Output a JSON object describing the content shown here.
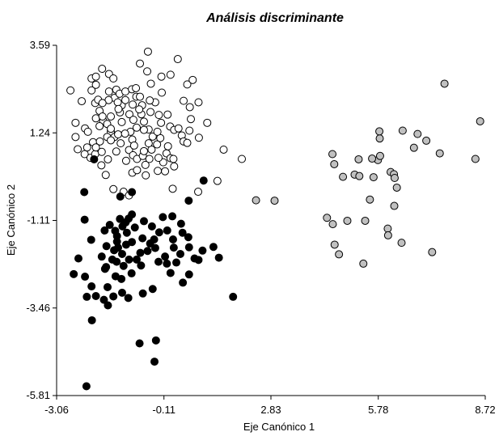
{
  "chart_data": {
    "type": "scatter",
    "title": "Análisis discriminante",
    "xlabel": "Eje Canónico 1",
    "ylabel": "Eje Canónico 2",
    "xlim": [
      -3.06,
      8.72
    ],
    "ylim": [
      -5.81,
      3.59
    ],
    "x_ticks": [
      "-3.06",
      "-0.11",
      "2.83",
      "5.78",
      "8.72"
    ],
    "y_ticks": [
      "3.59",
      "1.24",
      "-1.11",
      "-3.46",
      "-5.81"
    ],
    "grid": false,
    "legend": "none",
    "series": [
      {
        "fill": "#ffffff",
        "stroke": "#000000",
        "points": [
          [
            -2.1,
            2.38
          ],
          [
            -2.0,
            2.04
          ],
          [
            -2.68,
            2.38
          ],
          [
            -2.37,
            2.09
          ],
          [
            -2.54,
            1.51
          ],
          [
            -2.28,
            1.36
          ],
          [
            -2.54,
            1.13
          ],
          [
            -2.48,
            0.8
          ],
          [
            -2.29,
            0.67
          ],
          [
            -2.13,
            0.57
          ],
          [
            -2.0,
            0.67
          ],
          [
            -2.2,
            1.27
          ],
          [
            -2.06,
            0.99
          ],
          [
            -2.22,
            0.85
          ],
          [
            -1.92,
            2.13
          ],
          [
            -1.88,
            1.83
          ],
          [
            -1.98,
            1.63
          ],
          [
            -1.78,
            1.56
          ],
          [
            -1.98,
            2.53
          ],
          [
            -2.1,
            2.7
          ],
          [
            -1.98,
            2.75
          ],
          [
            -1.81,
            2.96
          ],
          [
            -1.62,
            2.82
          ],
          [
            -1.5,
            2.7
          ],
          [
            -1.42,
            2.4
          ],
          [
            -1.47,
            2.18
          ],
          [
            -1.63,
            2.12
          ],
          [
            -1.8,
            2.04
          ],
          [
            -1.8,
            1.68
          ],
          [
            -1.57,
            1.68
          ],
          [
            -1.67,
            1.48
          ],
          [
            -1.88,
            1.42
          ],
          [
            -1.57,
            1.27
          ],
          [
            -1.47,
            1.13
          ],
          [
            -1.67,
            1.13
          ],
          [
            -1.87,
            1.01
          ],
          [
            -1.98,
            0.85
          ],
          [
            -1.82,
            0.73
          ],
          [
            -1.57,
            1.04
          ],
          [
            -1.57,
            1.35
          ],
          [
            -1.37,
            1.2
          ],
          [
            -1.3,
            0.96
          ],
          [
            -1.42,
            0.74
          ],
          [
            -1.07,
            0.78
          ],
          [
            -0.96,
            0.64
          ],
          [
            -1.15,
            0.49
          ],
          [
            -1.65,
            0.53
          ],
          [
            -1.83,
            0.37
          ],
          [
            -1.71,
            0.11
          ],
          [
            -1.5,
            -0.27
          ],
          [
            -1.22,
            -0.34
          ],
          [
            -1.07,
            -0.44
          ],
          [
            -0.98,
            0.17
          ],
          [
            -0.85,
            0.54
          ],
          [
            -0.69,
            0.62
          ],
          [
            -0.51,
            0.54
          ],
          [
            -0.45,
            0.79
          ],
          [
            -0.3,
            0.93
          ],
          [
            -0.42,
            1.14
          ],
          [
            -0.53,
            1.33
          ],
          [
            -0.66,
            1.54
          ],
          [
            -0.86,
            1.38
          ],
          [
            -1.03,
            1.27
          ],
          [
            -0.98,
            1.06
          ],
          [
            -1.18,
            1.22
          ],
          [
            -1.27,
            1.53
          ],
          [
            -1.06,
            1.74
          ],
          [
            -1.32,
            1.79
          ],
          [
            -1.27,
            1.98
          ],
          [
            -1.17,
            2.12
          ],
          [
            -1.38,
            2.06
          ],
          [
            -1.62,
            2.35
          ],
          [
            -1.33,
            2.29
          ],
          [
            -1.17,
            2.35
          ],
          [
            -0.99,
            2.41
          ],
          [
            -0.88,
            2.44
          ],
          [
            -0.87,
            2.21
          ],
          [
            -0.97,
            2.0
          ],
          [
            -0.77,
            2.21
          ],
          [
            -0.71,
            1.98
          ],
          [
            -0.73,
            1.74
          ],
          [
            -0.79,
            1.87
          ],
          [
            -0.95,
            1.59
          ],
          [
            -0.66,
            1.32
          ],
          [
            -0.53,
            0.96
          ],
          [
            -0.66,
            0.75
          ],
          [
            -0.62,
            0.38
          ],
          [
            -0.85,
            0.24
          ],
          [
            -0.61,
            0.1
          ],
          [
            -0.28,
            0.22
          ],
          [
            -0.13,
            0.45
          ],
          [
            -0.04,
            0.69
          ],
          [
            0.07,
            0.56
          ],
          [
            0.17,
            0.34
          ],
          [
            0.15,
            0.54
          ],
          [
            0.0,
            0.88
          ],
          [
            -0.21,
            1.1
          ],
          [
            -0.29,
            1.27
          ],
          [
            -0.19,
            1.51
          ],
          [
            -0.25,
            1.72
          ],
          [
            -0.01,
            1.73
          ],
          [
            0.06,
            1.41
          ],
          [
            0.17,
            1.32
          ],
          [
            0.29,
            1.36
          ],
          [
            0.38,
            1.17
          ],
          [
            0.43,
            1.01
          ],
          [
            0.53,
            0.97
          ],
          [
            0.59,
            1.3
          ],
          [
            0.63,
            1.61
          ],
          [
            0.6,
            1.93
          ],
          [
            0.43,
            2.1
          ],
          [
            0.53,
            2.54
          ],
          [
            0.68,
            2.66
          ],
          [
            0.27,
            3.22
          ],
          [
            0.07,
            2.8
          ],
          [
            -0.18,
            2.75
          ],
          [
            -0.47,
            2.56
          ],
          [
            -0.57,
            2.89
          ],
          [
            -0.77,
            3.1
          ],
          [
            -0.55,
            3.42
          ],
          [
            -0.17,
            2.32
          ],
          [
            -0.35,
            2.06
          ],
          [
            -0.5,
            2.11
          ],
          [
            -0.48,
            1.8
          ],
          [
            -0.26,
            0.57
          ],
          [
            -0.08,
            0.21
          ],
          [
            0.13,
            -0.26
          ],
          [
            0.85,
            1.11
          ],
          [
            0.84,
            2.06
          ],
          [
            1.08,
            1.51
          ],
          [
            1.53,
            0.79
          ],
          [
            2.03,
            0.54
          ],
          [
            1.36,
            -0.05
          ],
          [
            0.83,
            -0.34
          ],
          [
            -1.36,
            1.88
          ],
          [
            -0.93,
            0.9
          ]
        ]
      },
      {
        "fill": "#000000",
        "stroke": "#000000",
        "points": [
          [
            -2.03,
            0.53
          ],
          [
            -2.3,
            -0.35
          ],
          [
            -1.31,
            -0.47
          ],
          [
            -0.99,
            -0.35
          ],
          [
            0.57,
            -0.58
          ],
          [
            0.98,
            -0.04
          ],
          [
            -2.29,
            -1.09
          ],
          [
            -2.11,
            -1.63
          ],
          [
            -2.46,
            -2.13
          ],
          [
            -2.59,
            -2.55
          ],
          [
            -2.28,
            -2.62
          ],
          [
            -2.1,
            -2.88
          ],
          [
            -1.7,
            -2.36
          ],
          [
            -1.53,
            -2.16
          ],
          [
            -1.82,
            -2.08
          ],
          [
            -1.74,
            -1.38
          ],
          [
            -1.6,
            -1.23
          ],
          [
            -1.45,
            -1.39
          ],
          [
            -1.4,
            -1.53
          ],
          [
            -1.25,
            -1.27
          ],
          [
            -1.13,
            -1.44
          ],
          [
            -1.15,
            -1.76
          ],
          [
            -0.99,
            -1.69
          ],
          [
            -1.26,
            -2.01
          ],
          [
            -1.48,
            -1.91
          ],
          [
            -1.69,
            -1.8
          ],
          [
            -1.73,
            -2.41
          ],
          [
            -1.41,
            -2.22
          ],
          [
            -1.22,
            -2.33
          ],
          [
            -1.07,
            -2.16
          ],
          [
            -1.0,
            -2.53
          ],
          [
            -0.86,
            -2.16
          ],
          [
            -0.74,
            -2.32
          ],
          [
            -0.76,
            -1.98
          ],
          [
            -0.56,
            -1.93
          ],
          [
            -0.49,
            -1.73
          ],
          [
            -0.7,
            -1.59
          ],
          [
            -0.91,
            -1.3
          ],
          [
            -1.08,
            -1.06
          ],
          [
            -1.32,
            -1.07
          ],
          [
            -1.16,
            -1.16
          ],
          [
            -0.99,
            -0.95
          ],
          [
            -0.66,
            -1.13
          ],
          [
            -0.44,
            -1.27
          ],
          [
            -0.38,
            -1.62
          ],
          [
            -0.35,
            -1.85
          ],
          [
            -0.26,
            -2.22
          ],
          [
            -0.03,
            -2.27
          ],
          [
            -0.08,
            -2.08
          ],
          [
            0.23,
            -2.24
          ],
          [
            0.34,
            -2.01
          ],
          [
            0.16,
            -1.84
          ],
          [
            0.14,
            -1.62
          ],
          [
            -0.02,
            -1.38
          ],
          [
            -0.24,
            -1.43
          ],
          [
            -0.14,
            -1.02
          ],
          [
            0.12,
            -1.0
          ],
          [
            0.36,
            -1.2
          ],
          [
            0.4,
            -1.44
          ],
          [
            0.56,
            -1.56
          ],
          [
            0.58,
            -1.83
          ],
          [
            0.73,
            -2.13
          ],
          [
            0.95,
            -1.92
          ],
          [
            1.25,
            -1.82
          ],
          [
            1.4,
            -2.11
          ],
          [
            0.41,
            -2.78
          ],
          [
            0.07,
            -2.52
          ],
          [
            -0.42,
            -2.95
          ],
          [
            -0.69,
            -3.07
          ],
          [
            -1.09,
            -3.19
          ],
          [
            -1.26,
            -3.05
          ],
          [
            -1.5,
            -3.15
          ],
          [
            -1.76,
            -3.24
          ],
          [
            -1.98,
            -3.14
          ],
          [
            -1.66,
            -2.9
          ],
          [
            -1.44,
            -2.61
          ],
          [
            -1.28,
            -2.68
          ],
          [
            -1.37,
            -1.84
          ],
          [
            -1.4,
            -1.68
          ],
          [
            -2.09,
            -3.79
          ],
          [
            -1.65,
            -3.39
          ],
          [
            -2.23,
            -3.16
          ],
          [
            -2.24,
            -5.56
          ],
          [
            -0.78,
            -4.41
          ],
          [
            -0.37,
            -4.9
          ],
          [
            0.84,
            -2.17
          ],
          [
            1.79,
            -3.16
          ],
          [
            -0.33,
            -4.33
          ],
          [
            0.58,
            -2.56
          ]
        ]
      },
      {
        "fill": "#c0c0c0",
        "stroke": "#000000",
        "points": [
          [
            2.42,
            -0.57
          ],
          [
            2.93,
            -0.58
          ],
          [
            4.37,
            -1.04
          ],
          [
            4.53,
            -1.21
          ],
          [
            4.58,
            -1.76
          ],
          [
            4.7,
            -2.02
          ],
          [
            4.93,
            -1.12
          ],
          [
            5.37,
            -2.27
          ],
          [
            5.42,
            -1.12
          ],
          [
            5.55,
            -0.55
          ],
          [
            5.24,
            0.53
          ],
          [
            5.13,
            0.12
          ],
          [
            4.81,
            0.06
          ],
          [
            4.57,
            0.4
          ],
          [
            4.52,
            0.67
          ],
          [
            5.65,
            0.05
          ],
          [
            5.77,
            0.51
          ],
          [
            5.82,
            1.09
          ],
          [
            5.81,
            1.28
          ],
          [
            5.83,
            0.62
          ],
          [
            6.12,
            0.19
          ],
          [
            6.21,
            0.13
          ],
          [
            6.23,
            0.03
          ],
          [
            6.29,
            -0.23
          ],
          [
            6.22,
            -0.72
          ],
          [
            6.04,
            -1.33
          ],
          [
            6.05,
            -1.51
          ],
          [
            6.42,
            -1.71
          ],
          [
            6.76,
            0.84
          ],
          [
            6.86,
            1.21
          ],
          [
            7.1,
            1.03
          ],
          [
            7.47,
            0.69
          ],
          [
            7.6,
            2.56
          ],
          [
            8.45,
            0.54
          ],
          [
            8.58,
            1.55
          ],
          [
            7.26,
            -1.96
          ],
          [
            6.45,
            1.3
          ],
          [
            5.26,
            0.08
          ],
          [
            5.61,
            0.55
          ]
        ]
      }
    ]
  }
}
